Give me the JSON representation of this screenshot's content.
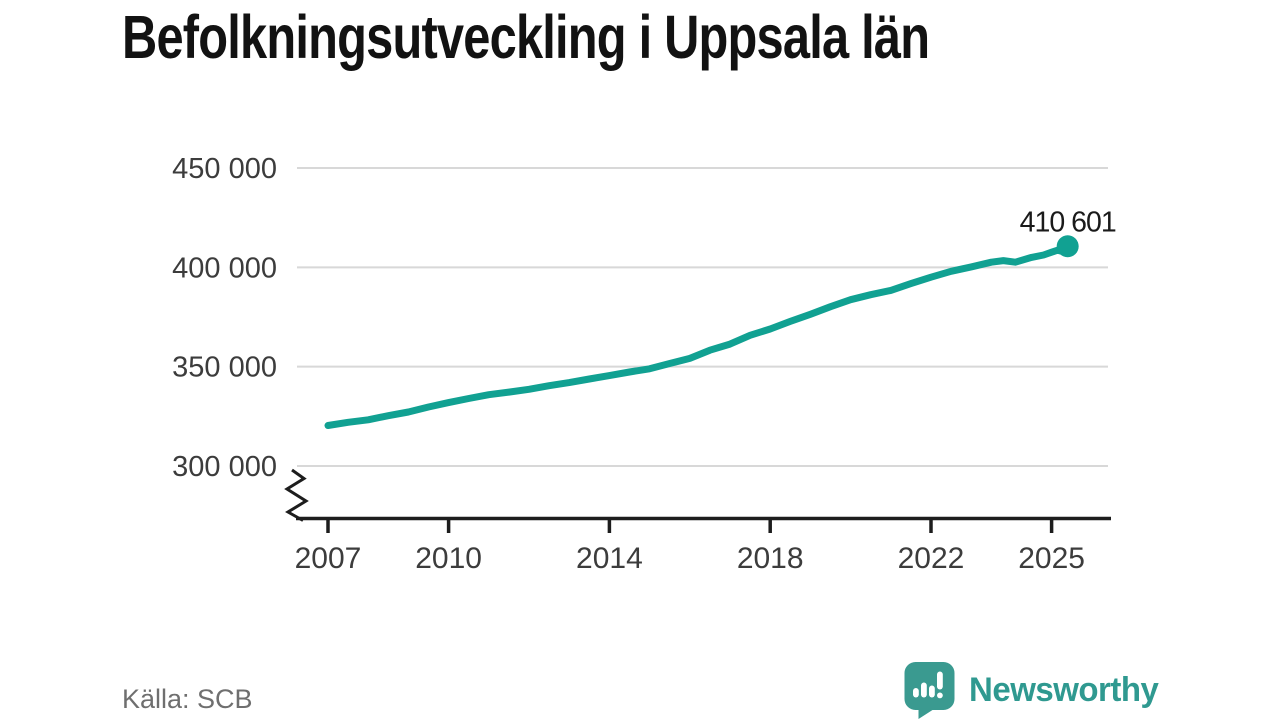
{
  "header": {
    "title": "Befolkningsutveckling i Uppsala län"
  },
  "footer": {
    "source": "Källa: SCB",
    "brand": "Newsworthy",
    "brand_icon": "speech-bubble-bar-chart-icon"
  },
  "colors": {
    "line": "#11a192",
    "marker": "#11a192",
    "logo": "#3a9a90",
    "brand_text": "#2f9990",
    "grid": "#d8d8d8",
    "axis": "#1d1d1d",
    "tick_label": "#3c3c3c",
    "title": "#121212",
    "source_text": "#6f6f6f",
    "end_label": "#1a1a1a"
  },
  "chart_data": {
    "type": "line",
    "title": "Befolkningsutveckling i Uppsala län",
    "xlabel": "",
    "ylabel": "",
    "grid": "horizontal",
    "legend": "none",
    "axis_break": true,
    "xlim": [
      2006.2,
      2026.5
    ],
    "ylim": [
      281000,
      458000
    ],
    "x_ticks": [
      {
        "value": 2007,
        "label": "2007"
      },
      {
        "value": 2010,
        "label": "2010"
      },
      {
        "value": 2014,
        "label": "2014"
      },
      {
        "value": 2018,
        "label": "2018"
      },
      {
        "value": 2022,
        "label": "2022"
      },
      {
        "value": 2025,
        "label": "2025"
      }
    ],
    "y_ticks": [
      {
        "value": 450000,
        "label": "450 000"
      },
      {
        "value": 400000,
        "label": "400 000"
      },
      {
        "value": 350000,
        "label": "350 000"
      },
      {
        "value": 300000,
        "label": "300 000"
      }
    ],
    "end_point": {
      "x": 2025.4,
      "value": 410601,
      "label": "410 601"
    },
    "series": [
      {
        "name": "Uppsala län",
        "x": [
          2007,
          2007.5,
          2008,
          2008.5,
          2009,
          2009.5,
          2010,
          2010.5,
          2011,
          2011.5,
          2012,
          2012.5,
          2013,
          2013.5,
          2014,
          2014.5,
          2015,
          2015.5,
          2016,
          2016.5,
          2017,
          2017.5,
          2018,
          2018.5,
          2019,
          2019.5,
          2020,
          2020.5,
          2021,
          2021.5,
          2022,
          2022.5,
          2023,
          2023.5,
          2023.8,
          2024.1,
          2024.5,
          2024.8,
          2025.0,
          2025.15,
          2025.28,
          2025.4
        ],
        "values": [
          320400,
          322000,
          323270,
          325300,
          327187,
          329700,
          331898,
          334000,
          335882,
          337200,
          338630,
          340400,
          341977,
          343800,
          345481,
          347300,
          348942,
          351600,
          354164,
          358300,
          361373,
          365800,
          368971,
          372800,
          376354,
          380200,
          383713,
          386200,
          388394,
          391800,
          395026,
          398000,
          400200,
          402600,
          403400,
          402600,
          405000,
          406200,
          407600,
          408600,
          407900,
          410601
        ]
      }
    ],
    "source": "SCB"
  }
}
